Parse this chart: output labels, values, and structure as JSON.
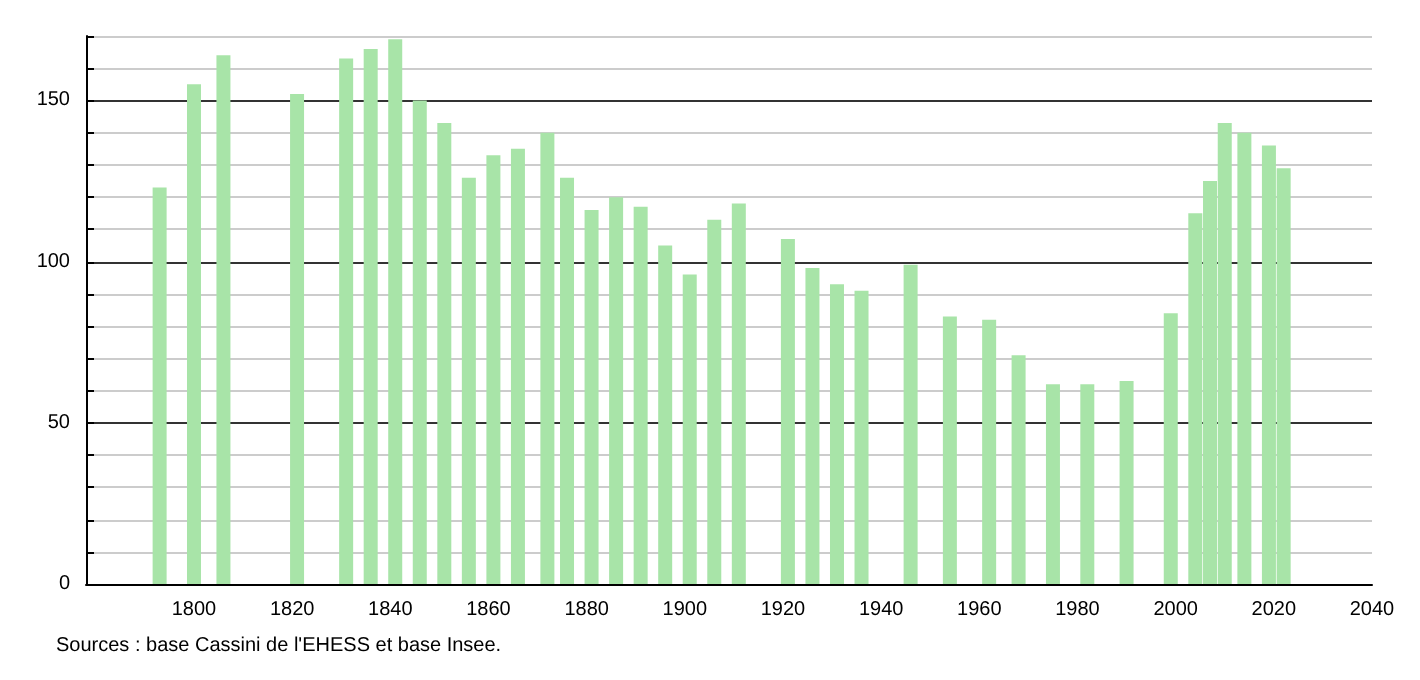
{
  "chart_data": {
    "type": "bar",
    "x": [
      1793,
      1800,
      1806,
      1821,
      1831,
      1836,
      1841,
      1846,
      1851,
      1856,
      1861,
      1866,
      1872,
      1876,
      1881,
      1886,
      1891,
      1896,
      1901,
      1906,
      1911,
      1921,
      1926,
      1931,
      1936,
      1946,
      1954,
      1962,
      1968,
      1975,
      1982,
      1990,
      1999,
      2004,
      2007,
      2010,
      2014,
      2019,
      2022
    ],
    "values": [
      123,
      155,
      164,
      152,
      163,
      166,
      169,
      150,
      143,
      126,
      133,
      135,
      140,
      126,
      116,
      120,
      117,
      105,
      96,
      113,
      118,
      107,
      98,
      93,
      91,
      99,
      83,
      82,
      71,
      62,
      62,
      63,
      84,
      115,
      125,
      143,
      140,
      136,
      129
    ],
    "color": "#a8e4a8",
    "xlim": [
      1778,
      2040
    ],
    "xticks": [
      1800,
      1820,
      1840,
      1860,
      1880,
      1900,
      1920,
      1940,
      1960,
      1980,
      2000,
      2020,
      2040
    ],
    "ylim": [
      0,
      170
    ],
    "yticks": [
      0,
      {
        "value": 10,
        "label": null
      },
      {
        "value": 20,
        "label": null
      },
      {
        "value": 30,
        "label": null
      },
      {
        "value": 40,
        "label": null
      },
      50,
      {
        "value": 60,
        "label": null
      },
      {
        "value": 70,
        "label": null
      },
      {
        "value": 80,
        "label": null
      },
      {
        "value": 90,
        "label": null
      },
      100,
      {
        "value": 110,
        "label": null
      },
      {
        "value": 120,
        "label": null
      },
      {
        "value": 130,
        "label": null
      },
      {
        "value": 140,
        "label": null
      },
      150,
      {
        "value": 160,
        "label": null
      },
      {
        "value": 170,
        "label": null
      }
    ],
    "grid": "y",
    "annotations": [
      "Sources : base Cassini de l'EHESS et base Insee."
    ]
  }
}
